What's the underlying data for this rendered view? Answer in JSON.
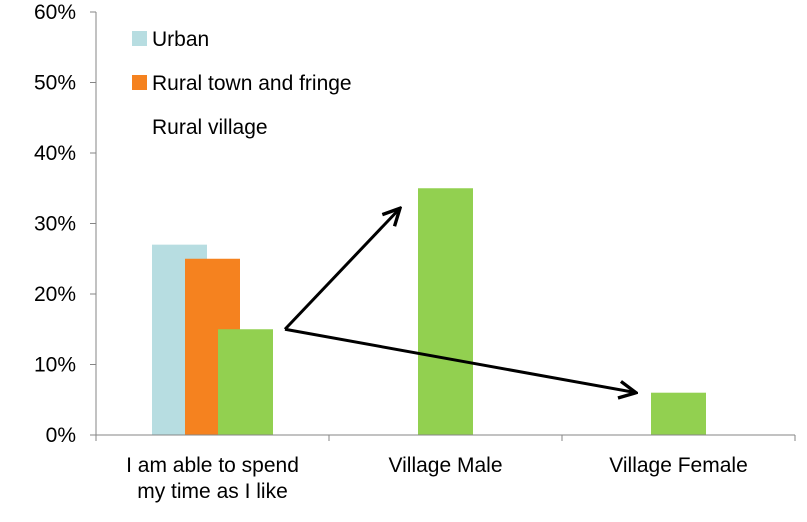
{
  "chart_data": {
    "type": "bar",
    "categories": [
      [
        "I am able to spend",
        "my time as I like"
      ],
      [
        "Village Male"
      ],
      [
        "Village Female"
      ]
    ],
    "series": [
      {
        "name": "Urban",
        "color": "#b7dde1",
        "values": [
          0.27,
          null,
          null
        ]
      },
      {
        "name": "Rural town and fringe",
        "color": "#f5821f",
        "values": [
          0.25,
          null,
          null
        ]
      },
      {
        "name": "Rural village",
        "color": "#92d050",
        "values": [
          0.15,
          0.35,
          0.06
        ]
      }
    ],
    "ylim": [
      0,
      0.6
    ],
    "yticks": [
      0,
      0.1,
      0.2,
      0.3,
      0.4,
      0.5,
      0.6
    ],
    "ytick_labels": [
      "0%",
      "10%",
      "20%",
      "30%",
      "40%",
      "50%",
      "60%"
    ],
    "legend_position": "top-left",
    "grid": false,
    "annotations": [
      {
        "type": "arrow",
        "from_category": 0,
        "from_series": 2,
        "to_category": 1,
        "to_series": 2
      },
      {
        "type": "arrow",
        "from_category": 0,
        "from_series": 2,
        "to_category": 2,
        "to_series": 2
      }
    ]
  }
}
